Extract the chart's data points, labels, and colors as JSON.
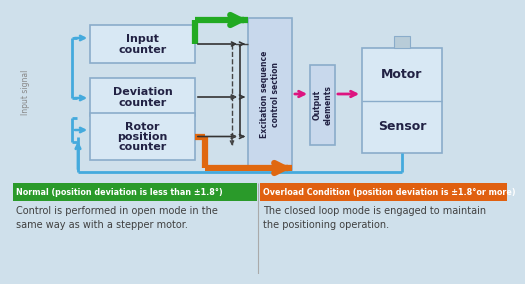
{
  "bg_color": "#cfe0eb",
  "box_fill": "#d8e8f4",
  "box_edge": "#8aacca",
  "tall_box_fill": "#c8d8ec",
  "green_color": "#22aa22",
  "orange_color": "#e06810",
  "blue_color": "#44aadd",
  "pink_color": "#dd1480",
  "dark_color": "#333333",
  "dashed_color": "#444444",
  "normal_label_bg": "#2a9a2a",
  "overload_label_bg": "#e06010",
  "label_text_color": "#ffffff",
  "body_text_color": "#404040",
  "normal_label": "Normal (position deviation is less than ±1.8°)",
  "overload_label": "Overload Condition (position deviation is ±1.8°or more)",
  "normal_desc1": "Control is performed in open mode in the",
  "normal_desc2": "same way as with a stepper motor.",
  "overload_desc1": "The closed loop mode is engaged to maintain",
  "overload_desc2": "the positioning operation.",
  "box1_line1": "Input",
  "box1_line2": "counter",
  "box2_line1": "Deviation",
  "box2_line2": "counter",
  "box3_line1": "Rotor",
  "box3_line2": "position",
  "box3_line3": "counter",
  "excit_text": "Excitation sequence\ncontrol section",
  "output_text": "Output\nelements",
  "motor_label": "Motor",
  "sensor_label": "Sensor",
  "input_signal_label": "Input signal"
}
